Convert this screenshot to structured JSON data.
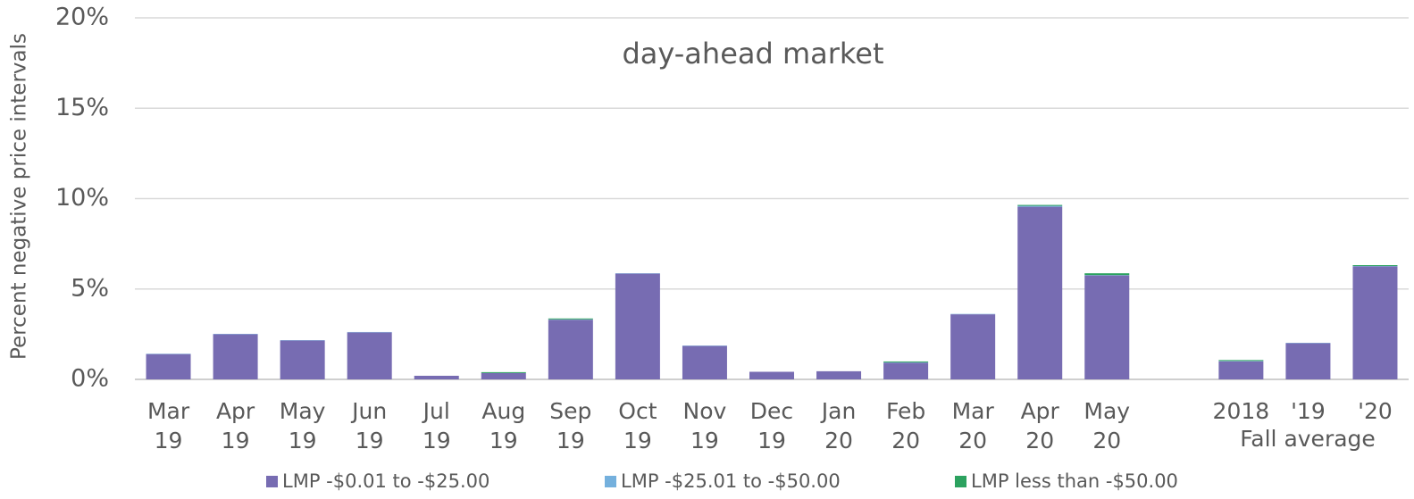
{
  "chart_data": {
    "type": "bar",
    "stacked": true,
    "title": "day-ahead market",
    "y_label": "Percent negative price intervals",
    "annotation": "Fall average",
    "categories": [
      "Mar 19",
      "Apr 19",
      "May 19",
      "Jun 19",
      "Jul 19",
      "Aug 19",
      "Sep 19",
      "Oct 19",
      "Nov 19",
      "Dec 19",
      "Jan 20",
      "Feb 20",
      "Mar 20",
      "Apr 20",
      "May 20",
      null,
      "2018",
      "'19",
      "'20"
    ],
    "series": [
      {
        "name": "LMP -$0.01 to -$25.00",
        "color": "#776cb2",
        "values": [
          1.4,
          2.5,
          2.15,
          2.6,
          0.2,
          0.35,
          3.3,
          5.85,
          1.85,
          0.42,
          0.45,
          0.92,
          3.6,
          9.55,
          5.75,
          null,
          1.0,
          2.0,
          6.25
        ]
      },
      {
        "name": "LMP -$25.01 to -$50.00",
        "color": "#74b0dd",
        "values": [
          0.02,
          0.02,
          0.02,
          0.02,
          0,
          0,
          0.02,
          0.02,
          0.02,
          0,
          0,
          0.02,
          0.02,
          0.05,
          0.02,
          null,
          0.02,
          0.02,
          0.02
        ]
      },
      {
        "name": "LMP less than -$50.00",
        "color": "#2ca25f",
        "values": [
          0,
          0,
          0,
          0,
          0,
          0.05,
          0.05,
          0,
          0,
          0,
          0,
          0.05,
          0,
          0.05,
          0.1,
          null,
          0.05,
          0,
          0.05
        ]
      }
    ],
    "ylim": [
      0,
      20
    ],
    "yticks": [
      {
        "value": 0,
        "label": "0%"
      },
      {
        "value": 5,
        "label": "5%"
      },
      {
        "value": 10,
        "label": "10%"
      },
      {
        "value": 15,
        "label": "15%"
      },
      {
        "value": 20,
        "label": "20%"
      }
    ],
    "grid": true,
    "legend": "bottom"
  }
}
